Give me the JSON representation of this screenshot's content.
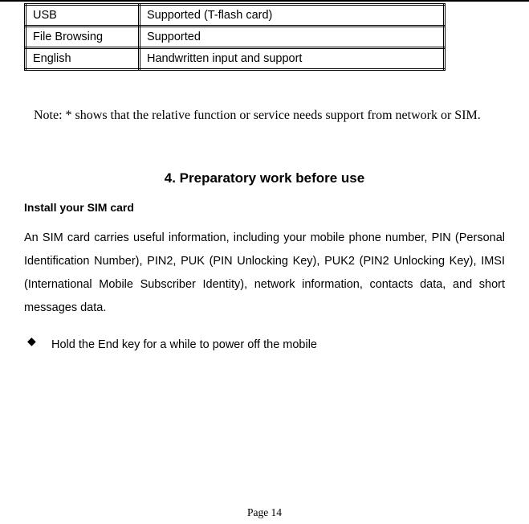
{
  "table": {
    "rows": [
      {
        "label": "USB",
        "value": "Supported (T-flash card)"
      },
      {
        "label": "File Browsing",
        "value": "Supported"
      },
      {
        "label": "English",
        "value": "Handwritten input and support"
      }
    ]
  },
  "note_text": "Note: * shows that the relative function or service needs support from network or SIM.",
  "section_title": "4. Preparatory work before use",
  "subheading": "Install your SIM card",
  "paragraph": "An SIM card carries useful information, including your mobile phone number, PIN (Personal Identification Number), PIN2, PUK (PIN Unlocking Key), PUK2 (PIN2 Unlocking Key), IMSI (International Mobile Subscriber Identity), network information, contacts data, and short messages data.",
  "bullet_glyph": "◆",
  "bullet_text": "Hold the End key for a while to power off the mobile",
  "page_number": "Page 14"
}
